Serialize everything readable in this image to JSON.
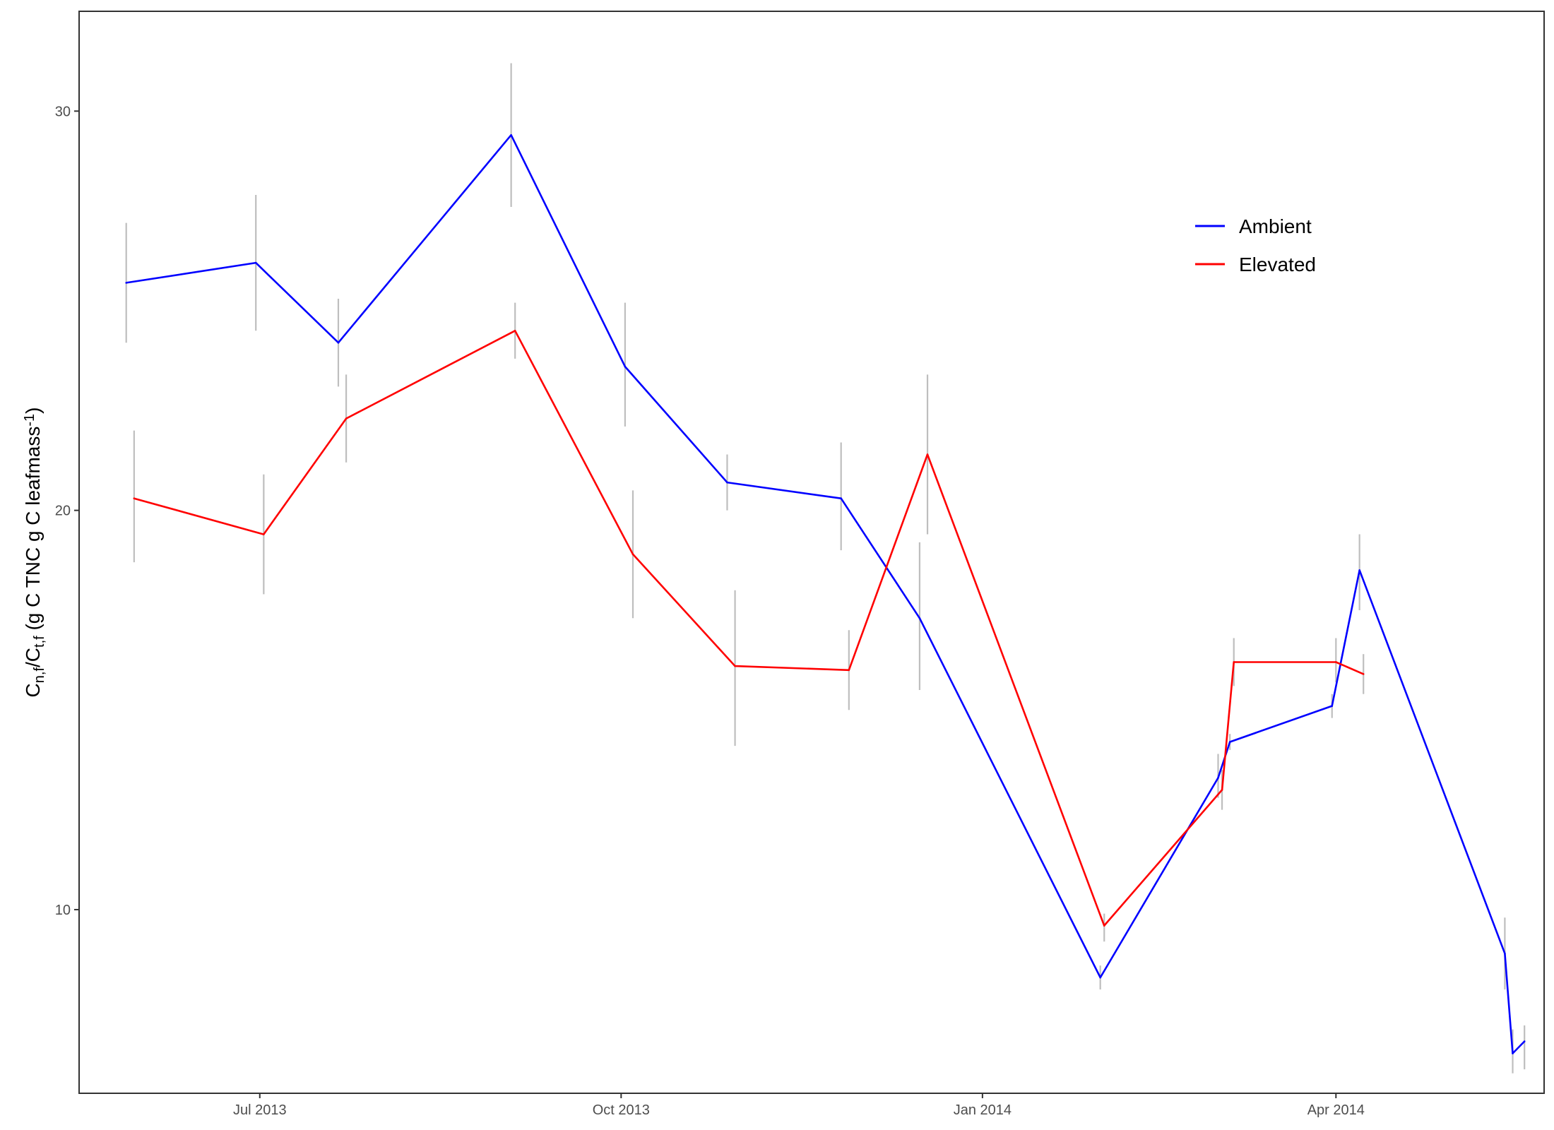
{
  "chart_data": {
    "type": "line",
    "title": "",
    "xlabel": "",
    "ylabel": {
      "parts": [
        "C",
        "n,f",
        "/C",
        "t,f",
        " (g C TNC g C leafmass",
        "-1",
        ")"
      ]
    },
    "x_axis": {
      "type": "date",
      "range": [
        "2013-05-16",
        "2014-05-24"
      ],
      "ticks": [
        {
          "date": "2013-07-01",
          "label": "Jul 2013"
        },
        {
          "date": "2013-10-01",
          "label": "Oct 2013"
        },
        {
          "date": "2014-01-01",
          "label": "Jan 2014"
        },
        {
          "date": "2014-04-01",
          "label": "Apr 2014"
        }
      ]
    },
    "y_axis": {
      "range": [
        5.4,
        32.5
      ],
      "ticks": [
        10,
        20,
        30
      ]
    },
    "grid": false,
    "legend": {
      "position": "top-right"
    },
    "error_bar_color": "#bebebe",
    "series": [
      {
        "name": "Ambient",
        "color": "#0000ff",
        "points": [
          {
            "x": "2013-05-28",
            "y": 25.7,
            "lo": 24.2,
            "hi": 27.2
          },
          {
            "x": "2013-06-30",
            "y": 26.2,
            "lo": 24.5,
            "hi": 27.9
          },
          {
            "x": "2013-07-21",
            "y": 24.2,
            "lo": 23.1,
            "hi": 25.3
          },
          {
            "x": "2013-09-03",
            "y": 29.4,
            "lo": 27.6,
            "hi": 31.2
          },
          {
            "x": "2013-10-02",
            "y": 23.6,
            "lo": 22.1,
            "hi": 25.2
          },
          {
            "x": "2013-10-28",
            "y": 20.7,
            "lo": 20.0,
            "hi": 21.4
          },
          {
            "x": "2013-11-26",
            "y": 20.3,
            "lo": 19.0,
            "hi": 21.7
          },
          {
            "x": "2013-12-16",
            "y": 17.3,
            "lo": 15.5,
            "hi": 19.2
          },
          {
            "x": "2014-01-31",
            "y": 8.3,
            "lo": 8.0,
            "hi": 8.6
          },
          {
            "x": "2014-03-02",
            "y": 13.3,
            "lo": 12.8,
            "hi": 13.9
          },
          {
            "x": "2014-03-05",
            "y": 14.2,
            "lo": 14.0,
            "hi": 14.4
          },
          {
            "x": "2014-03-31",
            "y": 15.1,
            "lo": 14.8,
            "hi": 15.4
          },
          {
            "x": "2014-04-07",
            "y": 18.5,
            "lo": 17.5,
            "hi": 19.4
          },
          {
            "x": "2014-05-14",
            "y": 8.9,
            "lo": 8.0,
            "hi": 9.8
          },
          {
            "x": "2014-05-16",
            "y": 6.4,
            "lo": 5.9,
            "hi": 7.0
          },
          {
            "x": "2014-05-19",
            "y": 6.7,
            "lo": 6.0,
            "hi": 7.1
          }
        ]
      },
      {
        "name": "Elevated",
        "color": "#ff0000",
        "points": [
          {
            "x": "2013-05-30",
            "y": 20.3,
            "lo": 18.7,
            "hi": 22.0
          },
          {
            "x": "2013-07-02",
            "y": 19.4,
            "lo": 17.9,
            "hi": 20.9
          },
          {
            "x": "2013-07-23",
            "y": 22.3,
            "lo": 21.2,
            "hi": 23.4
          },
          {
            "x": "2013-09-04",
            "y": 24.5,
            "lo": 23.8,
            "hi": 25.2
          },
          {
            "x": "2013-10-04",
            "y": 18.9,
            "lo": 17.3,
            "hi": 20.5
          },
          {
            "x": "2013-10-30",
            "y": 16.1,
            "lo": 14.1,
            "hi": 18.0
          },
          {
            "x": "2013-11-28",
            "y": 16.0,
            "lo": 15.0,
            "hi": 17.0
          },
          {
            "x": "2013-12-18",
            "y": 21.4,
            "lo": 19.4,
            "hi": 23.4
          },
          {
            "x": "2014-02-01",
            "y": 9.6,
            "lo": 9.2,
            "hi": 9.9
          },
          {
            "x": "2014-03-03",
            "y": 13.0,
            "lo": 12.5,
            "hi": 13.5
          },
          {
            "x": "2014-03-06",
            "y": 16.2,
            "lo": 15.6,
            "hi": 16.8
          },
          {
            "x": "2014-04-01",
            "y": 16.2,
            "lo": 15.7,
            "hi": 16.8
          },
          {
            "x": "2014-04-08",
            "y": 15.9,
            "lo": 15.4,
            "hi": 16.4
          }
        ]
      }
    ]
  }
}
